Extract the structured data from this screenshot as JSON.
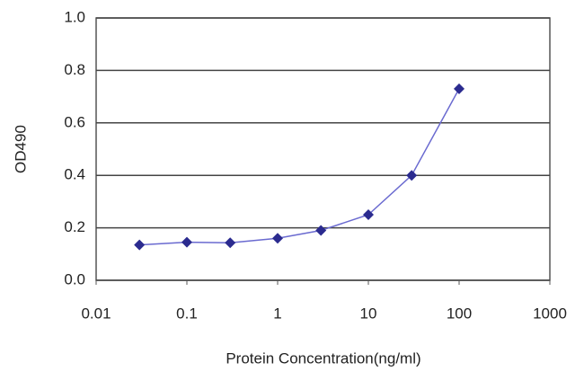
{
  "chart_data": {
    "type": "line",
    "xscale": "log",
    "grid": true,
    "color": "#2b2b8f",
    "line_color": "#6a6ad0",
    "ylabel": "OD490",
    "xlabel": "Protein Concentration(ng/ml)",
    "x": [
      0.03,
      0.1,
      0.3,
      1,
      3,
      10,
      30,
      100
    ],
    "values": [
      0.135,
      0.145,
      0.143,
      0.16,
      0.19,
      0.25,
      0.4,
      0.73
    ],
    "xlim": [
      0.01,
      1000
    ],
    "xticks": [
      0.01,
      0.1,
      1,
      10,
      100,
      1000
    ],
    "ylim": [
      0,
      1
    ],
    "yticks": [
      {
        "value": 0,
        "label": "0.0"
      },
      0.2,
      0.4,
      0.6,
      0.8,
      {
        "value": 1,
        "label": "1.0"
      }
    ]
  }
}
